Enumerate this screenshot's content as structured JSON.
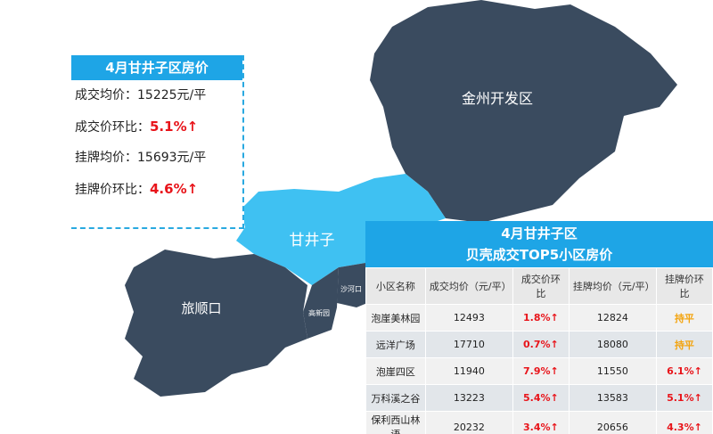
{
  "info_box": {
    "title": "4月甘井子区房价",
    "items": [
      {
        "label": "成交均价：",
        "value": "15225元/平"
      },
      {
        "label": "成交价环比：",
        "value": "5.1%↑"
      },
      {
        "label": "挂牌均价：",
        "value": "15693元/平"
      },
      {
        "label": "挂牌价环比：",
        "value": "4.6%↑"
      }
    ]
  },
  "map": {
    "regions": [
      "金州开发区",
      "甘井子",
      "旅顺口",
      "沙河口",
      "高新园"
    ]
  },
  "table": {
    "title": [
      "4月甘井子区",
      "贝壳成交TOP5小区房价"
    ],
    "header": [
      "小区名称",
      "成交均价（元/平）",
      "成交价环比",
      "挂牌均价（元/平）",
      "挂牌价环比"
    ],
    "rows": [
      [
        "泡崖美林园",
        "12493",
        "1.8%↑",
        "12824",
        "持平"
      ],
      [
        "远洋广场",
        "17710",
        "0.7%↑",
        "18080",
        "持平"
      ],
      [
        "泡崖四区",
        "11940",
        "7.9%↑",
        "11550",
        "6.1%↑"
      ],
      [
        "万科溪之谷",
        "13223",
        "5.4%↑",
        "13583",
        "5.1%↑"
      ],
      [
        "保利西山林语",
        "20232",
        "3.4%↑",
        "20656",
        "4.3%↑"
      ]
    ]
  }
}
